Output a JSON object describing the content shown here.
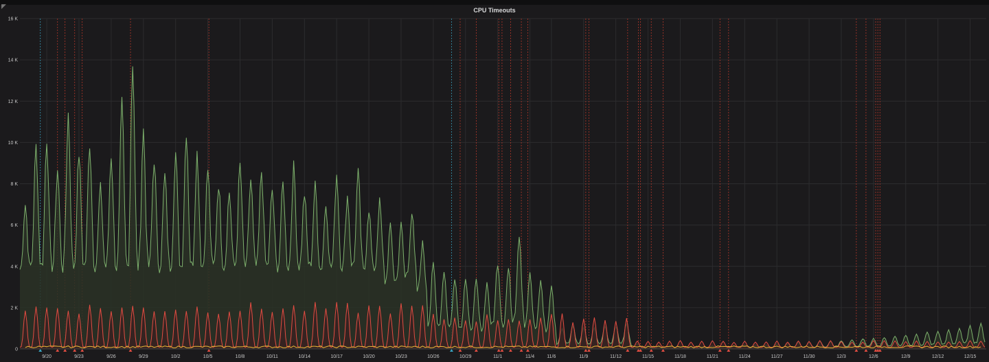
{
  "panel": {
    "title": "CPU Timeouts"
  },
  "chart_data": {
    "type": "line",
    "title": "CPU Timeouts",
    "xlabel": "",
    "ylabel": "",
    "x_range": [
      "9/18",
      "12/16"
    ],
    "ylim": [
      0,
      16000
    ],
    "grid": true,
    "legend": "none",
    "y_ticks": [
      {
        "value": 0,
        "label": "0"
      },
      {
        "value": 2000,
        "label": "2 K"
      },
      {
        "value": 4000,
        "label": "4 K"
      },
      {
        "value": 6000,
        "label": "6 K"
      },
      {
        "value": 8000,
        "label": "8 K"
      },
      {
        "value": 10000,
        "label": "10 K"
      },
      {
        "value": 12000,
        "label": "12 K"
      },
      {
        "value": 14000,
        "label": "14 K"
      },
      {
        "value": 16000,
        "label": "16 K"
      }
    ],
    "x_ticks": [
      {
        "date": "9/20",
        "label": "9/20"
      },
      {
        "date": "9/23",
        "label": "9/23"
      },
      {
        "date": "9/26",
        "label": "9/26"
      },
      {
        "date": "9/29",
        "label": "9/29"
      },
      {
        "date": "10/2",
        "label": "10/2"
      },
      {
        "date": "10/5",
        "label": "10/5"
      },
      {
        "date": "10/8",
        "label": "10/8"
      },
      {
        "date": "10/11",
        "label": "10/11"
      },
      {
        "date": "10/14",
        "label": "10/14"
      },
      {
        "date": "10/17",
        "label": "10/17"
      },
      {
        "date": "10/20",
        "label": "10/20"
      },
      {
        "date": "10/23",
        "label": "10/23"
      },
      {
        "date": "10/26",
        "label": "10/26"
      },
      {
        "date": "10/29",
        "label": "10/29"
      },
      {
        "date": "11/1",
        "label": "11/1"
      },
      {
        "date": "11/4",
        "label": "11/4"
      },
      {
        "date": "11/6",
        "label": "11/6"
      },
      {
        "date": "11/9",
        "label": "11/9"
      },
      {
        "date": "11/12",
        "label": "11/12"
      },
      {
        "date": "11/15",
        "label": "11/15"
      },
      {
        "date": "11/18",
        "label": "11/18"
      },
      {
        "date": "11/21",
        "label": "11/21"
      },
      {
        "date": "11/24",
        "label": "11/24"
      },
      {
        "date": "11/27",
        "label": "11/27"
      },
      {
        "date": "11/30",
        "label": "11/30"
      },
      {
        "date": "12/3",
        "label": "12/3"
      },
      {
        "date": "12/6",
        "label": "12/6"
      },
      {
        "date": "12/9",
        "label": "12/9"
      },
      {
        "date": "12/12",
        "label": "12/12"
      },
      {
        "date": "12/15",
        "label": "12/15"
      }
    ],
    "series": [
      {
        "color": "#7eb26d",
        "fill": "#2a3326",
        "daily_peaks": [
          [
            "9/18",
            7000
          ],
          [
            "9/19",
            9800
          ],
          [
            "9/20",
            10200
          ],
          [
            "9/21",
            8700
          ],
          [
            "9/22",
            11400
          ],
          [
            "9/23",
            9500
          ],
          [
            "9/24",
            10000
          ],
          [
            "9/25",
            7800
          ],
          [
            "9/26",
            9400
          ],
          [
            "9/27",
            11800
          ],
          [
            "9/28",
            14000
          ],
          [
            "9/29",
            10600
          ],
          [
            "9/30",
            9200
          ],
          [
            "10/1",
            8400
          ],
          [
            "10/2",
            9500
          ],
          [
            "10/3",
            10600
          ],
          [
            "10/4",
            9500
          ],
          [
            "10/5",
            8700
          ],
          [
            "10/6",
            8000
          ],
          [
            "10/7",
            7600
          ],
          [
            "10/8",
            8900
          ],
          [
            "10/9",
            8200
          ],
          [
            "10/10",
            8600
          ],
          [
            "10/11",
            7700
          ],
          [
            "10/12",
            8000
          ],
          [
            "10/13",
            8800
          ],
          [
            "10/14",
            7500
          ],
          [
            "10/15",
            7900
          ],
          [
            "10/16",
            7000
          ],
          [
            "10/17",
            8500
          ],
          [
            "10/18",
            7400
          ],
          [
            "10/19",
            8500
          ],
          [
            "10/20",
            6800
          ],
          [
            "10/21",
            7100
          ],
          [
            "10/22",
            5900
          ],
          [
            "10/23",
            6000
          ],
          [
            "10/24",
            6600
          ],
          [
            "10/25",
            5100
          ],
          [
            "10/26",
            4100
          ],
          [
            "10/27",
            3800
          ],
          [
            "10/28",
            3500
          ],
          [
            "10/29",
            3400
          ],
          [
            "10/30",
            3300
          ],
          [
            "10/31",
            3200
          ],
          [
            "11/1",
            4200
          ],
          [
            "11/2",
            3900
          ],
          [
            "11/3",
            5600
          ],
          [
            "11/4",
            3600
          ],
          [
            "11/5",
            3300
          ],
          [
            "11/6",
            3000
          ],
          [
            "11/7",
            1000
          ],
          [
            "11/8",
            1100
          ],
          [
            "11/9",
            1000
          ],
          [
            "11/10",
            1000
          ],
          [
            "11/11",
            1100
          ],
          [
            "11/12",
            1100
          ],
          [
            "11/13",
            1200
          ],
          [
            "11/14",
            250
          ],
          [
            "11/15",
            150
          ],
          [
            "11/16",
            100
          ],
          [
            "11/17",
            100
          ],
          [
            "11/18",
            100
          ],
          [
            "11/19",
            100
          ],
          [
            "11/20",
            100
          ],
          [
            "11/21",
            150
          ],
          [
            "11/22",
            150
          ],
          [
            "11/23",
            150
          ],
          [
            "11/24",
            200
          ],
          [
            "11/25",
            200
          ],
          [
            "11/26",
            200
          ],
          [
            "11/27",
            250
          ],
          [
            "11/28",
            250
          ],
          [
            "11/29",
            300
          ],
          [
            "11/30",
            300
          ],
          [
            "12/1",
            350
          ],
          [
            "12/2",
            350
          ],
          [
            "12/3",
            400
          ],
          [
            "12/4",
            450
          ],
          [
            "12/5",
            500
          ],
          [
            "12/6",
            500
          ],
          [
            "12/7",
            550
          ],
          [
            "12/8",
            600
          ],
          [
            "12/9",
            650
          ],
          [
            "12/10",
            700
          ],
          [
            "12/11",
            800
          ],
          [
            "12/12",
            850
          ],
          [
            "12/13",
            900
          ],
          [
            "12/14",
            1000
          ],
          [
            "12/15",
            1100
          ],
          [
            "12/16",
            1200
          ]
        ],
        "baseline_approx": 4000
      },
      {
        "color": "#e24d42",
        "fill": "#3a2021",
        "daily_peaks_approx": "about 2000 from 9/18 to 10/25, about 1500 from 10/26 to 11/13, about 300 from 11/14 to 12/16"
      },
      {
        "color": "#eab839",
        "level_approx": 100
      }
    ],
    "annotations_red": [
      "9/21",
      "9/21.7",
      "9/22.6",
      "9/23.3",
      "9/27.8",
      "10/5.1",
      "10/28.5",
      "10/30",
      "11/1.1",
      "11/1.4",
      "11/2.2",
      "11/3.2",
      "11/3.8",
      "11/9.2",
      "11/9.5",
      "11/13.1",
      "11/14.1",
      "11/14.3",
      "11/15.3",
      "11/16.4",
      "11/21.7",
      "11/22.5",
      "12/4.4",
      "12/5.3",
      "12/6.2",
      "12/6.4",
      "12/6.6"
    ],
    "annotations_blue": [
      "9/19.4",
      "10/27.7"
    ]
  }
}
